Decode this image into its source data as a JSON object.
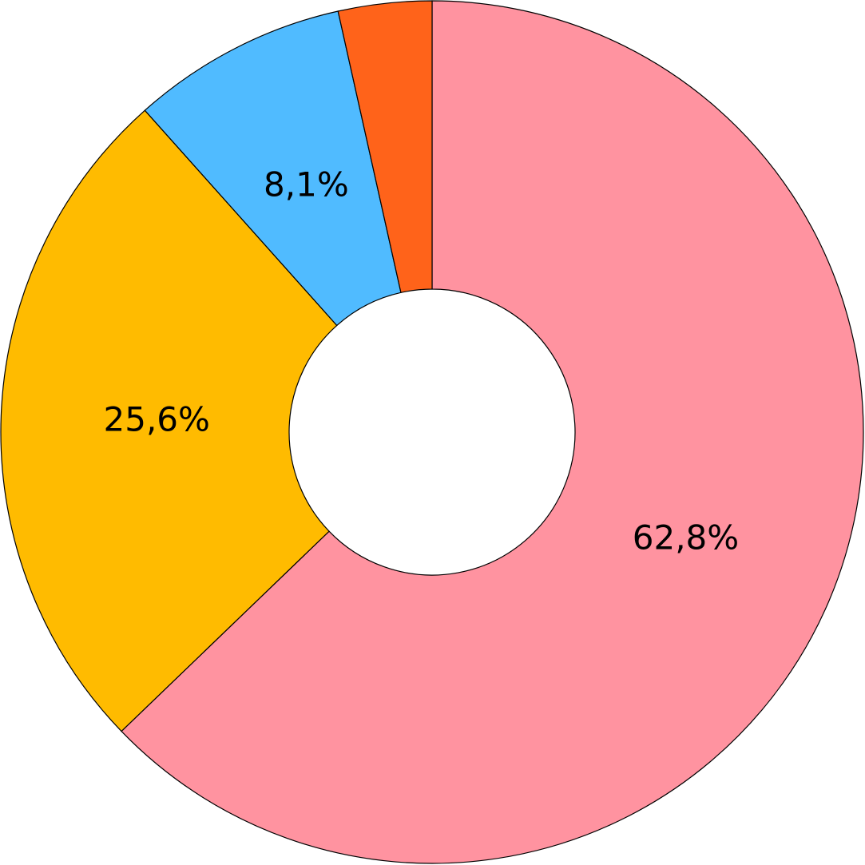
{
  "chart_data": {
    "type": "donut",
    "values": [
      62.8,
      25.6,
      8.1,
      3.5
    ],
    "value_labels": [
      "62,8%",
      "25,6%",
      "8,1%",
      null
    ],
    "colors": [
      "#ff93a0",
      "#ffbb00",
      "#50bbff",
      "#ff631a"
    ]
  }
}
